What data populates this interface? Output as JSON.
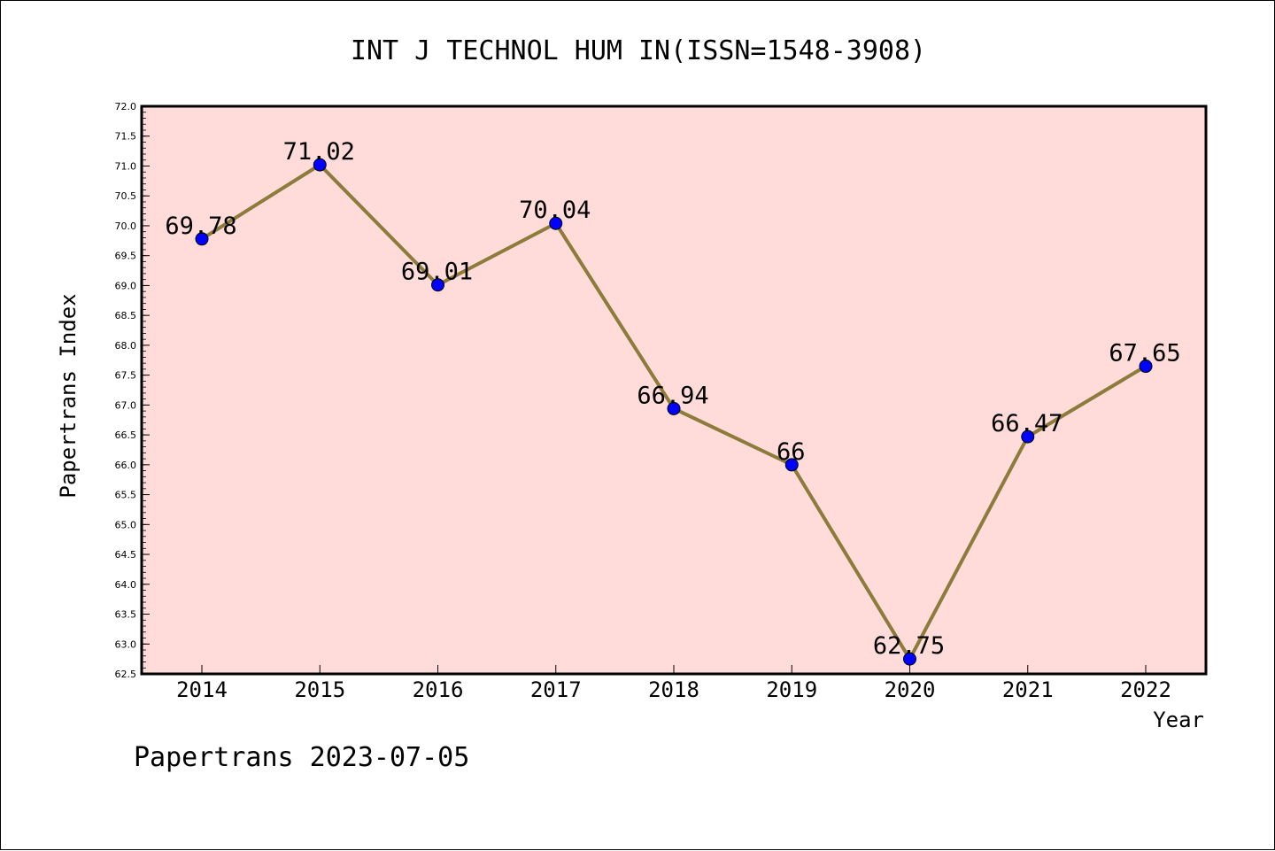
{
  "chart_data": {
    "type": "line",
    "title": "INT J TECHNOL HUM IN(ISSN=1548-3908)",
    "xlabel": "Year",
    "ylabel": "Papertrans Index",
    "categories": [
      "2014",
      "2015",
      "2016",
      "2017",
      "2018",
      "2019",
      "2020",
      "2021",
      "2022"
    ],
    "values": [
      69.78,
      71.02,
      69.01,
      70.04,
      66.94,
      66,
      62.75,
      66.47,
      67.65
    ],
    "data_labels": [
      "69.78",
      "71.02",
      "69.01",
      "70.04",
      "66.94",
      "66",
      "62.75",
      "66.47",
      "67.65"
    ],
    "ylim": [
      62.5,
      72.0
    ],
    "yticks": [
      "62.5",
      "63.0",
      "63.5",
      "64.0",
      "64.5",
      "65.0",
      "65.5",
      "66.0",
      "66.5",
      "67.0",
      "67.5",
      "68.0",
      "68.5",
      "69.0",
      "69.5",
      "70.0",
      "70.5",
      "71.0",
      "71.5",
      "72.0"
    ],
    "colors": {
      "plot_bg": "#FFDCDA",
      "line": "#8C7B3A",
      "marker": "#0000FF"
    },
    "grid": false,
    "legend": "none"
  },
  "footer": "Papertrans 2023-07-05"
}
